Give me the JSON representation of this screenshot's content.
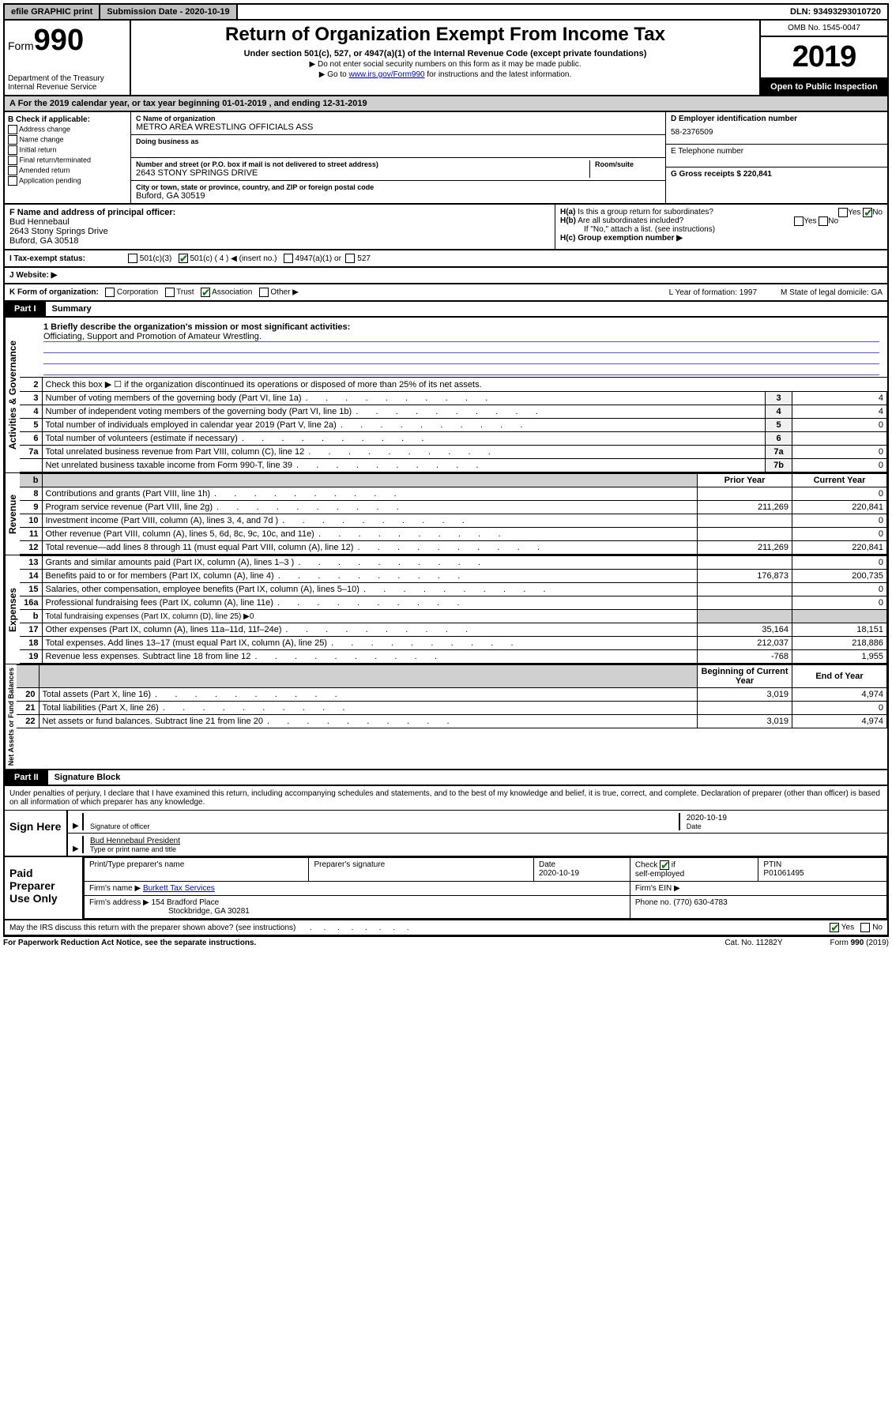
{
  "top_bar": {
    "efile": "efile GRAPHIC print",
    "submission_label": "Submission Date - 2020-10-19",
    "dln": "DLN: 93493293010720"
  },
  "header": {
    "form_prefix": "Form",
    "form_number": "990",
    "title": "Return of Organization Exempt From Income Tax",
    "subtitle": "Under section 501(c), 527, or 4947(a)(1) of the Internal Revenue Code (except private foundations)",
    "line1": "▶ Do not enter social security numbers on this form as it may be made public.",
    "line2_pre": "▶ Go to ",
    "line2_link": "www.irs.gov/Form990",
    "line2_post": " for instructions and the latest information.",
    "dept": "Department of the Treasury\nInternal Revenue Service",
    "omb": "OMB No. 1545-0047",
    "year": "2019",
    "open": "Open to Public Inspection"
  },
  "period": "A For the 2019 calendar year, or tax year beginning 01-01-2019    , and ending 12-31-2019",
  "col_b": {
    "header": "B Check if applicable:",
    "opts": [
      "Address change",
      "Name change",
      "Initial return",
      "Final return/terminated",
      "Amended return",
      "Application pending"
    ]
  },
  "col_c": {
    "name_label": "C Name of organization",
    "name": "METRO AREA WRESTLING OFFICIALS ASS",
    "dba_label": "Doing business as",
    "addr_label": "Number and street (or P.O. box if mail is not delivered to street address)",
    "room_label": "Room/suite",
    "addr": "2643 STONY SPRINGS DRIVE",
    "city_label": "City or town, state or province, country, and ZIP or foreign postal code",
    "city": "Buford, GA  30519"
  },
  "col_d": {
    "d_label": "D Employer identification number",
    "ein": "58-2376509",
    "e_label": "E Telephone number",
    "g_label": "G Gross receipts $ 220,841"
  },
  "row_f": {
    "f_label": "F  Name and address of principal officer:",
    "name": "Bud Hennebaul",
    "addr1": "2643 Stony Springs Drive",
    "addr2": "Buford, GA  30518",
    "ha": "H(a)  Is this a group return for subordinates?",
    "ha_yes": "Yes",
    "ha_no": "No",
    "hb": "H(b)  Are all subordinates included?",
    "hb_yes": "Yes",
    "hb_no": "No",
    "hb_note": "If \"No,\" attach a list. (see instructions)",
    "hc": "H(c)  Group exemption number ▶"
  },
  "status": {
    "i_label": "I    Tax-exempt status:",
    "opts": [
      "501(c)(3)",
      "501(c) ( 4 ) ◀ (insert no.)",
      "4947(a)(1) or",
      "527"
    ]
  },
  "website": {
    "j_label": "J    Website: ▶"
  },
  "k_row": {
    "k_label": "K Form of organization:",
    "opts": [
      "Corporation",
      "Trust",
      "Association",
      "Other ▶"
    ],
    "l": "L Year of formation: 1997",
    "m": "M State of legal domicile: GA"
  },
  "part1": {
    "label": "Part I",
    "title": "Summary"
  },
  "mission": {
    "q1": "1  Briefly describe the organization's mission or most significant activities:",
    "text": "Officiating, Support and Promotion of Amateur Wrestling."
  },
  "gov_lines": [
    {
      "n": "2",
      "d": "Check this box ▶ ☐  if the organization discontinued its operations or disposed of more than 25% of its net assets."
    },
    {
      "n": "3",
      "d": "Number of voting members of the governing body (Part VI, line 1a)",
      "box": "3",
      "v": "4"
    },
    {
      "n": "4",
      "d": "Number of independent voting members of the governing body (Part VI, line 1b)",
      "box": "4",
      "v": "4"
    },
    {
      "n": "5",
      "d": "Total number of individuals employed in calendar year 2019 (Part V, line 2a)",
      "box": "5",
      "v": "0"
    },
    {
      "n": "6",
      "d": "Total number of volunteers (estimate if necessary)",
      "box": "6",
      "v": ""
    },
    {
      "n": "7a",
      "d": "Total unrelated business revenue from Part VIII, column (C), line 12",
      "box": "7a",
      "v": "0"
    },
    {
      "n": "",
      "d": "Net unrelated business taxable income from Form 990-T, line 39",
      "box": "7b",
      "v": "0"
    }
  ],
  "rev_header": {
    "b": "b",
    "prior": "Prior Year",
    "current": "Current Year"
  },
  "rev_lines": [
    {
      "n": "8",
      "d": "Contributions and grants (Part VIII, line 1h)",
      "p": "",
      "c": "0"
    },
    {
      "n": "9",
      "d": "Program service revenue (Part VIII, line 2g)",
      "p": "211,269",
      "c": "220,841"
    },
    {
      "n": "10",
      "d": "Investment income (Part VIII, column (A), lines 3, 4, and 7d )",
      "p": "",
      "c": "0"
    },
    {
      "n": "11",
      "d": "Other revenue (Part VIII, column (A), lines 5, 6d, 8c, 9c, 10c, and 11e)",
      "p": "",
      "c": "0"
    },
    {
      "n": "12",
      "d": "Total revenue—add lines 8 through 11 (must equal Part VIII, column (A), line 12)",
      "p": "211,269",
      "c": "220,841"
    }
  ],
  "exp_lines": [
    {
      "n": "13",
      "d": "Grants and similar amounts paid (Part IX, column (A), lines 1–3 )",
      "p": "",
      "c": "0"
    },
    {
      "n": "14",
      "d": "Benefits paid to or for members (Part IX, column (A), line 4)",
      "p": "176,873",
      "c": "200,735"
    },
    {
      "n": "15",
      "d": "Salaries, other compensation, employee benefits (Part IX, column (A), lines 5–10)",
      "p": "",
      "c": "0"
    },
    {
      "n": "16a",
      "d": "Professional fundraising fees (Part IX, column (A), line 11e)",
      "p": "",
      "c": "0"
    },
    {
      "n": "b",
      "d": "Total fundraising expenses (Part IX, column (D), line 25) ▶0",
      "shade": true
    },
    {
      "n": "17",
      "d": "Other expenses (Part IX, column (A), lines 11a–11d, 11f–24e)",
      "p": "35,164",
      "c": "18,151"
    },
    {
      "n": "18",
      "d": "Total expenses. Add lines 13–17 (must equal Part IX, column (A), line 25)",
      "p": "212,037",
      "c": "218,886"
    },
    {
      "n": "19",
      "d": "Revenue less expenses. Subtract line 18 from line 12",
      "p": "-768",
      "c": "1,955"
    }
  ],
  "na_header": {
    "beg": "Beginning of Current Year",
    "end": "End of Year"
  },
  "na_lines": [
    {
      "n": "20",
      "d": "Total assets (Part X, line 16)",
      "p": "3,019",
      "c": "4,974"
    },
    {
      "n": "21",
      "d": "Total liabilities (Part X, line 26)",
      "p": "",
      "c": "0"
    },
    {
      "n": "22",
      "d": "Net assets or fund balances. Subtract line 21 from line 20",
      "p": "3,019",
      "c": "4,974"
    }
  ],
  "part2": {
    "label": "Part II",
    "title": "Signature Block"
  },
  "perjury": "Under penalties of perjury, I declare that I have examined this return, including accompanying schedules and statements, and to the best of my knowledge and belief, it is true, correct, and complete. Declaration of preparer (other than officer) is based on all information of which preparer has any knowledge.",
  "sign": {
    "here": "Sign Here",
    "sig_of": "Signature of officer",
    "date": "2020-10-19",
    "date_label": "Date",
    "name": "Bud Hennebaul  President",
    "type_label": "Type or print name and title"
  },
  "paid": {
    "label": "Paid Preparer Use Only",
    "h1": "Print/Type preparer's name",
    "h2": "Preparer's signature",
    "h3": "Date",
    "date": "2020-10-19",
    "h4": "Check ☑ if self-employed",
    "h5": "PTIN",
    "ptin": "P01061495",
    "firm_label": "Firm's name    ▶",
    "firm": "Burkett Tax Services",
    "ein_label": "Firm's EIN ▶",
    "addr_label": "Firm's address ▶",
    "addr1": "154 Bradford Place",
    "addr2": "Stockbridge, GA  30281",
    "phone_label": "Phone no. (770) 630-4783"
  },
  "discuss": {
    "q": "May the IRS discuss this return with the preparer shown above? (see instructions)",
    "yes": "Yes",
    "no": "No"
  },
  "footer": {
    "left": "For Paperwork Reduction Act Notice, see the separate instructions.",
    "cat": "Cat. No. 11282Y",
    "form": "Form 990 (2019)"
  },
  "side_labels": {
    "gov": "Activities & Governance",
    "rev": "Revenue",
    "exp": "Expenses",
    "na": "Net Assets or Fund Balances"
  }
}
